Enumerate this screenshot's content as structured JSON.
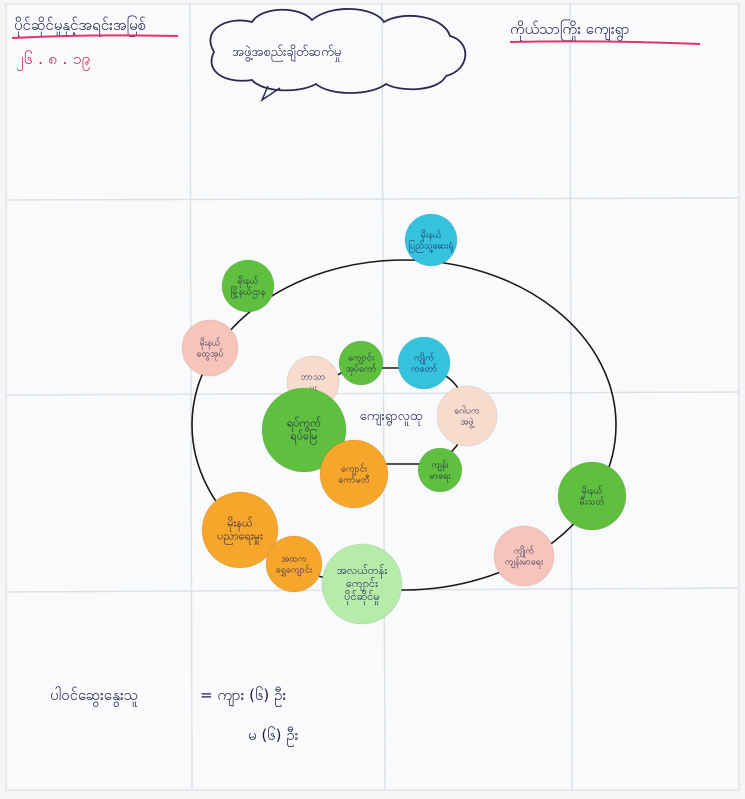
{
  "header": {
    "top_left_title": "ပိုင်ဆိုင်မှုနှင့်အရင်းအမြစ်",
    "date": "၂၆ . ၈ . ၁၉",
    "cloud_text": "အဖွဲ့အစည်းချိတ်ဆက်မှု",
    "top_right_title": "ကိုယ်သာကြိုး ကျေးရွာ"
  },
  "center_label": "ကျေးရွာလူထု",
  "colors": {
    "outer_line": "#1a1a1a",
    "text": "#1e1c4f",
    "green": "#5fbf3f",
    "cyan": "#35c2dc",
    "pink": "#f6c4b8",
    "peach": "#f7dccd",
    "orange": "#f6a62a",
    "lightgreen": "#b6ebaa",
    "underline": "#e0336f"
  },
  "nodes": [
    {
      "id": "n1",
      "label": "မိုးနယ် ပြည်သူ့ဆေးရုံ",
      "color": "cyan"
    },
    {
      "id": "n2",
      "label": "မိုးနယ် မြို့နယ်ဌာန",
      "color": "green"
    },
    {
      "id": "n3",
      "label": "မိုးနယ် ထွေအုပ်",
      "color": "pink"
    },
    {
      "id": "n4",
      "label": "ဘာသာ မှူး",
      "color": "peach"
    },
    {
      "id": "n5",
      "label": "ကျောင်း အုပ်ကော်",
      "color": "green"
    },
    {
      "id": "n6",
      "label": "ကျိုက် ကတော်",
      "color": "cyan"
    },
    {
      "id": "n7",
      "label": "ရပ်ကွက် ရပ်မြေ",
      "color": "green"
    },
    {
      "id": "n8",
      "label": "ဂေါပက အဖွဲ့",
      "color": "peach"
    },
    {
      "id": "n9",
      "label": "ကျောင်း ကော်မတီ",
      "color": "orange"
    },
    {
      "id": "n10",
      "label": "ကျန်း မာရေး",
      "color": "green"
    },
    {
      "id": "n11",
      "label": "မိုးနယ် မီးသတ်",
      "color": "green"
    },
    {
      "id": "n12",
      "label": "မိုးနယ် ပညာရေးမှူး",
      "color": "orange"
    },
    {
      "id": "n13",
      "label": "ကျိုက် ကျန်းမာရေး",
      "color": "pink"
    },
    {
      "id": "n14",
      "label": "အထက ရွှေကျောင်း",
      "color": "orange"
    },
    {
      "id": "n15",
      "label": "အလယ်တန်း ကျောင်း ပိုင်ဆိုင်မှု",
      "color": "lightgreen"
    }
  ],
  "footer": {
    "line1_label": "ပါဝင်ဆွေးနွေးသူ",
    "line1_value": "= ကျား (၆) ဦး",
    "line2_value": "မ (၆) ဦး"
  }
}
